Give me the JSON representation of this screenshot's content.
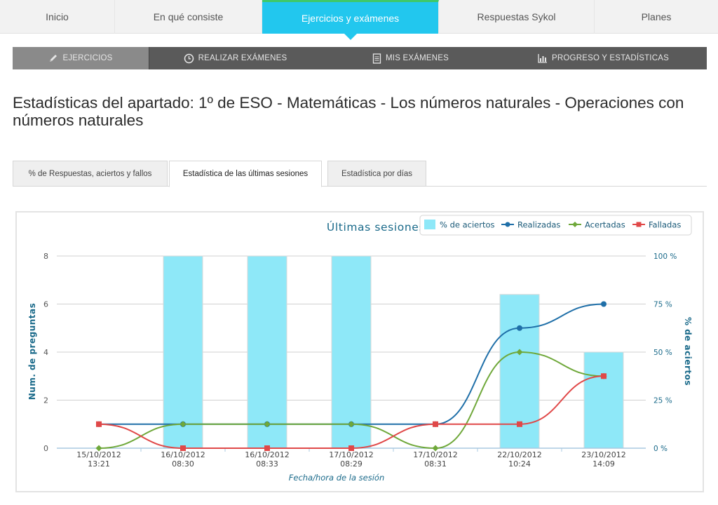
{
  "topnav": {
    "items": [
      {
        "label": "Inicio"
      },
      {
        "label": "En qué consiste"
      },
      {
        "label": "Ejercicios y exámenes"
      },
      {
        "label": "Respuestas Sykol"
      },
      {
        "label": "Planes"
      }
    ],
    "active_index": 2
  },
  "subnav": {
    "items": [
      {
        "label": "EJERCICIOS",
        "icon": "pencil-icon"
      },
      {
        "label": "REALIZAR EXÁMENES",
        "icon": "clock-icon"
      },
      {
        "label": "MIS EXÁMENES",
        "icon": "document-icon"
      },
      {
        "label": "PROGRESO Y ESTADÍSTICAS",
        "icon": "bar-chart-icon"
      }
    ],
    "active_index": 0
  },
  "page": {
    "title": "Estadísticas del apartado: 1º de ESO - Matemáticas - Los números naturales - Operaciones con números naturales"
  },
  "tabs": {
    "items": [
      {
        "label": "% de Respuestas, aciertos y fallos"
      },
      {
        "label": "Estadística de las últimas sesiones"
      },
      {
        "label": "Estadística por días"
      }
    ],
    "active_index": 1
  },
  "chart_data": {
    "type": "bar",
    "title": "Últimas sesiones",
    "xlabel": "Fecha/hora de la sesión",
    "ylabel": "Num. de preguntas",
    "y2label": "% de aciertos",
    "categories": [
      [
        "15/10/2012",
        "13:21"
      ],
      [
        "16/10/2012",
        "08:30"
      ],
      [
        "16/10/2012",
        "08:33"
      ],
      [
        "17/10/2012",
        "08:29"
      ],
      [
        "17/10/2012",
        "08:31"
      ],
      [
        "22/10/2012",
        "10:24"
      ],
      [
        "23/10/2012",
        "14:09"
      ]
    ],
    "ylim": [
      0,
      8
    ],
    "yticks": [
      "0",
      "2",
      "4",
      "6",
      "8"
    ],
    "y2lim": [
      0,
      100
    ],
    "y2ticks": [
      "0 %",
      "25 %",
      "50 %",
      "75 %",
      "100 %"
    ],
    "grid": true,
    "legend_position": "top-right",
    "bar_series": {
      "name": "% de aciertos",
      "color": "#8ee8f8",
      "values": [
        0,
        100,
        100,
        100,
        0,
        80,
        50
      ]
    },
    "series": [
      {
        "name": "Realizadas",
        "color": "#1f6fa8",
        "marker": "circle",
        "values": [
          1,
          1,
          1,
          1,
          1,
          5,
          6
        ]
      },
      {
        "name": "Acertadas",
        "color": "#6fa83a",
        "marker": "diamond",
        "values": [
          0,
          1,
          1,
          1,
          0,
          4,
          3
        ]
      },
      {
        "name": "Falladas",
        "color": "#e04848",
        "marker": "square",
        "values": [
          1,
          0,
          0,
          0,
          1,
          1,
          3
        ]
      }
    ]
  }
}
